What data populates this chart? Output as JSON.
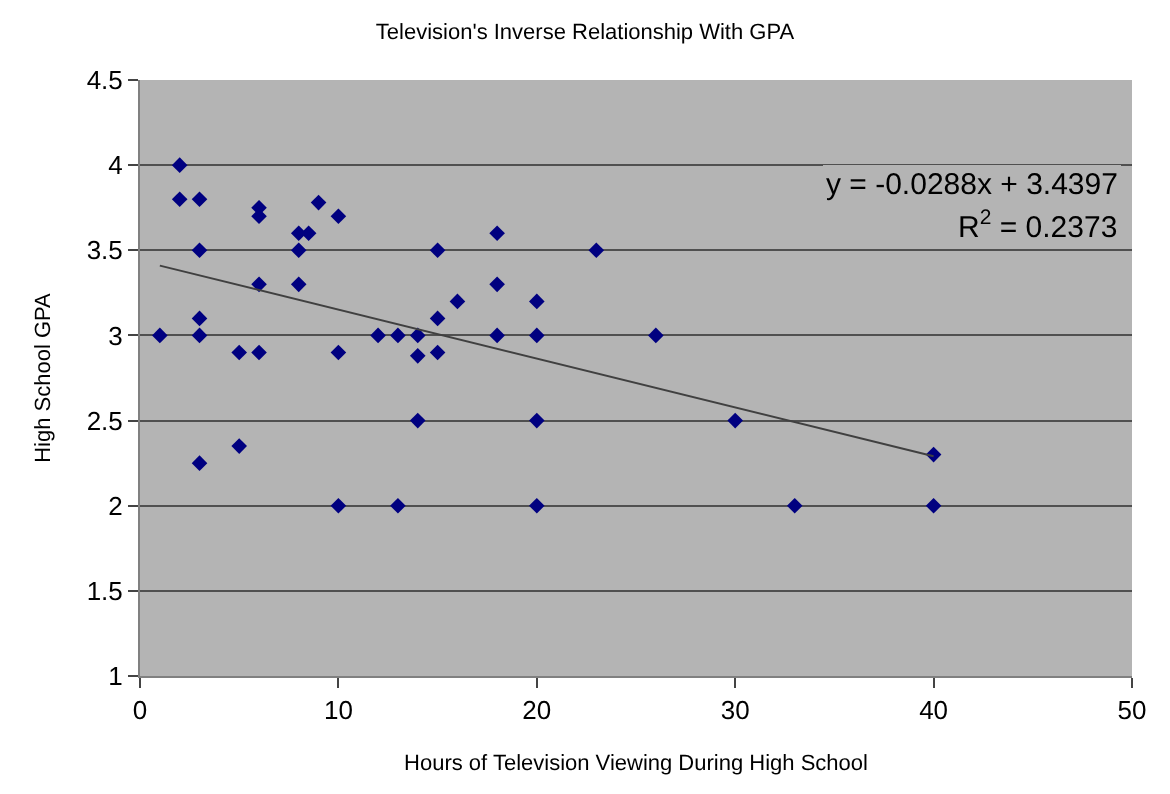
{
  "chart_data": {
    "type": "scatter",
    "title": "Television's Inverse Relationship With GPA",
    "xlabel": "Hours of Television Viewing During High School",
    "ylabel": "High School GPA",
    "annotations": [
      "y = -0.0288x + 3.4397",
      "R$^{2}$ = 0.2373"
    ],
    "series": [
      {
        "color": "#000080",
        "marker": "diamond",
        "x": [
          2,
          2,
          3,
          6,
          6,
          9,
          10,
          8,
          8.5,
          3,
          8,
          15,
          6,
          8,
          16,
          3,
          15,
          1,
          3,
          12,
          13,
          14,
          5,
          6,
          10,
          14,
          15,
          14,
          5,
          3,
          10,
          13,
          18,
          23,
          18,
          20,
          18,
          20,
          26,
          20,
          30,
          20,
          33,
          40,
          40
        ],
        "values": [
          4,
          3.8,
          3.8,
          3.75,
          3.7,
          3.78,
          3.7,
          3.6,
          3.6,
          3.5,
          3.5,
          3.5,
          3.3,
          3.3,
          3.2,
          3.1,
          3.1,
          3,
          3,
          3,
          3,
          3,
          2.9,
          2.9,
          2.9,
          2.88,
          2.9,
          2.5,
          2.35,
          2.25,
          2,
          2,
          3.6,
          3.5,
          3.3,
          3.2,
          3,
          3,
          3,
          2.5,
          2.5,
          2,
          2,
          2.3,
          2
        ]
      },
      {
        "type": "line",
        "color": "#404040",
        "x": [
          1,
          40
        ],
        "values": [
          3.41,
          2.29
        ]
      }
    ],
    "xlim": [
      0,
      50
    ],
    "xticks": [
      0,
      10,
      20,
      30,
      40,
      50
    ],
    "ylim": [
      1,
      4.5
    ],
    "yticks": [
      1,
      1.5,
      2,
      2.5,
      3,
      3.5,
      4,
      4.5
    ],
    "grid": "y"
  }
}
